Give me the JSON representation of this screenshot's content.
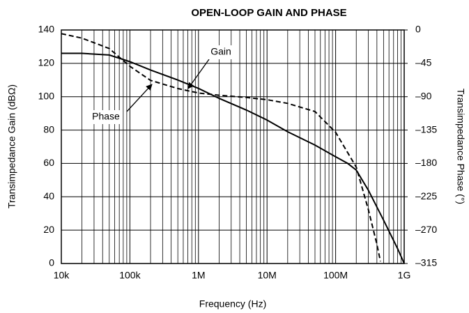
{
  "chart_data": {
    "type": "line",
    "title": "OPEN-LOOP GAIN AND PHASE",
    "xlabel": "Frequency (Hz)",
    "ylabel": "Transimpedance Gain (dBΩ)",
    "y2label": "Transimpedance Phase (°)",
    "xscale": "log",
    "grid": true,
    "minor_grid": true,
    "xlim": [
      10000,
      1000000000
    ],
    "xticks": [
      {
        "value": 10000,
        "label": "10k"
      },
      {
        "value": 100000,
        "label": "100k"
      },
      {
        "value": 1000000,
        "label": "1M"
      },
      {
        "value": 10000000,
        "label": "10M"
      },
      {
        "value": 100000000,
        "label": "100M"
      },
      {
        "value": 1000000000,
        "label": "1G"
      }
    ],
    "ylim": [
      0,
      140
    ],
    "yticks": [
      0,
      20,
      40,
      60,
      80,
      100,
      120,
      140
    ],
    "y2lim": [
      -315,
      0
    ],
    "y2ticks": [
      {
        "value": -315,
        "label": "–315"
      },
      {
        "value": -270,
        "label": "–270"
      },
      {
        "value": -225,
        "label": "–225"
      },
      {
        "value": -180,
        "label": "–180"
      },
      {
        "value": -135,
        "label": "–135"
      },
      {
        "value": -90,
        "label": "–90"
      },
      {
        "value": -45,
        "label": "–45"
      },
      0
    ],
    "annotations": [
      "Gain",
      "Phase"
    ],
    "series": [
      {
        "name": "Gain",
        "color": "#000000",
        "linestyle": "solid",
        "x": [
          10000,
          20000,
          50000,
          100000,
          200000,
          500000,
          1000000,
          2000000,
          5000000,
          10000000,
          20000000,
          50000000,
          100000000,
          150000000,
          200000000,
          300000000,
          500000000,
          800000000,
          1000000000
        ],
        "values": [
          126,
          126,
          125,
          121,
          116,
          110,
          105,
          99,
          92,
          86,
          79,
          71,
          64,
          60,
          56,
          44,
          26,
          9,
          0
        ]
      },
      {
        "name": "Phase",
        "color": "#000000",
        "linestyle": "dashed",
        "axis": "y2",
        "x": [
          10000,
          20000,
          50000,
          100000,
          200000,
          500000,
          1000000,
          2000000,
          5000000,
          10000000,
          20000000,
          50000000,
          100000000,
          200000000,
          300000000,
          400000000,
          450000000
        ],
        "values": [
          -5,
          -11,
          -25,
          -49,
          -68,
          -79,
          -85,
          -88,
          -91,
          -94,
          -99,
          -110,
          -138,
          -185,
          -242,
          -289,
          -312
        ]
      }
    ]
  }
}
